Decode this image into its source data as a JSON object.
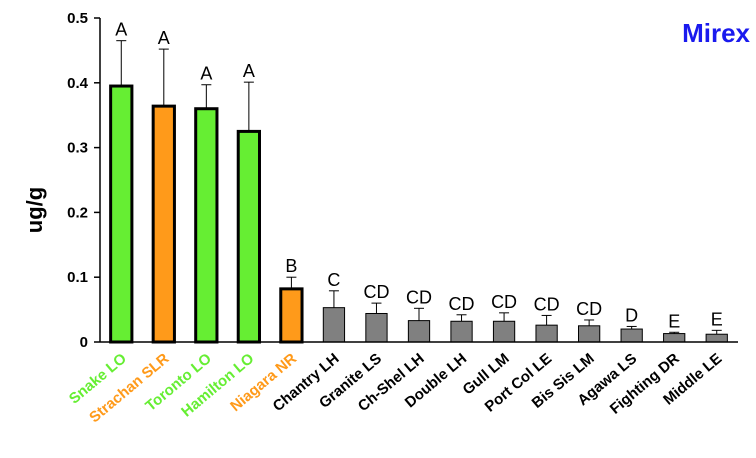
{
  "chart_data": {
    "type": "bar",
    "title": "Mirex",
    "ylabel": "ug/g",
    "xlabel": "",
    "ylim": [
      0,
      0.5
    ],
    "yticks": [
      "0",
      "0.1",
      "0.2",
      "0.3",
      "0.4",
      "0.5"
    ],
    "yticks_values": [
      0,
      0.1,
      0.2,
      0.3,
      0.4,
      0.5
    ],
    "grid": false,
    "categories": [
      "Snake LO",
      "Strachan SLR",
      "Toronto LO",
      "Hamilton LO",
      "Niagara NR",
      "Chantry LH",
      "Granite LS",
      "Ch-Shel LH",
      "Double LH",
      "Gull LM",
      "Port Col LE",
      "Bis Sis LM",
      "Agawa LS",
      "Fighting DR",
      "Middle LE"
    ],
    "values": [
      0.395,
      0.364,
      0.36,
      0.325,
      0.082,
      0.053,
      0.044,
      0.033,
      0.032,
      0.032,
      0.026,
      0.025,
      0.02,
      0.013,
      0.012
    ],
    "error_upper": [
      0.465,
      0.452,
      0.397,
      0.401,
      0.1,
      0.079,
      0.06,
      0.052,
      0.042,
      0.045,
      0.041,
      0.034,
      0.024,
      0.015,
      0.018
    ],
    "significance": [
      "A",
      "A",
      "A",
      "A",
      "B",
      "C",
      "CD",
      "CD",
      "CD",
      "CD",
      "CD",
      "CD",
      "D",
      "E",
      "E"
    ],
    "bar_colors": [
      "#66ee33",
      "#ff9a1a",
      "#66ee33",
      "#66ee33",
      "#ff9a1a",
      "#808080",
      "#808080",
      "#808080",
      "#808080",
      "#808080",
      "#808080",
      "#808080",
      "#808080",
      "#808080",
      "#808080"
    ],
    "label_colors": [
      "#66ee33",
      "#ff9a1a",
      "#66ee33",
      "#66ee33",
      "#ff9a1a",
      "#000000",
      "#000000",
      "#000000",
      "#000000",
      "#000000",
      "#000000",
      "#000000",
      "#000000",
      "#000000",
      "#000000"
    ],
    "title_color": "#1a1aee"
  }
}
